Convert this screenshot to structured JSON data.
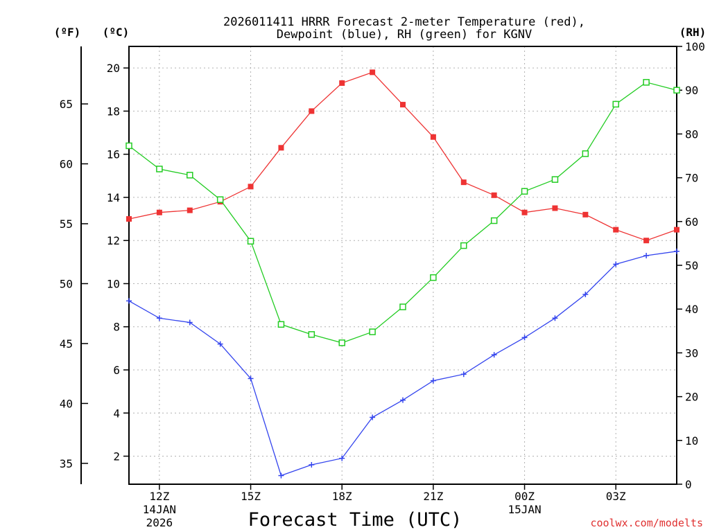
{
  "chart_data": {
    "type": "line",
    "title_line1": "2026011411 HRRR Forecast 2-meter Temperature (red),",
    "title_line2": "Dewpoint (blue), RH (green) for KGNV",
    "unit_f": "(ºF)",
    "unit_c": "(ºC)",
    "unit_rh": "(RH)",
    "xlabel": "Forecast Time (UTC)",
    "watermark": "coolwx.com/modelts",
    "x_hours": [
      11,
      12,
      13,
      14,
      15,
      16,
      17,
      18,
      19,
      20,
      21,
      22,
      23,
      24,
      25,
      26,
      27,
      28,
      29
    ],
    "x_ticks": [
      {
        "hour": 12,
        "label": "12Z",
        "sub1": "14JAN",
        "sub2": "2026"
      },
      {
        "hour": 15,
        "label": "15Z",
        "sub1": "",
        "sub2": ""
      },
      {
        "hour": 18,
        "label": "18Z",
        "sub1": "",
        "sub2": ""
      },
      {
        "hour": 21,
        "label": "21Z",
        "sub1": "",
        "sub2": ""
      },
      {
        "hour": 24,
        "label": "00Z",
        "sub1": "15JAN",
        "sub2": ""
      },
      {
        "hour": 27,
        "label": "03Z",
        "sub1": "",
        "sub2": ""
      }
    ],
    "xlim": [
      11,
      29
    ],
    "c_lim": [
      0.7,
      21.0
    ],
    "c_ticks": [
      "2",
      "4",
      "6",
      "8",
      "10",
      "12",
      "14",
      "16",
      "18",
      "20"
    ],
    "f_ticks": [
      "35",
      "40",
      "45",
      "50",
      "55",
      "60",
      "65"
    ],
    "rh_lim": [
      0,
      100
    ],
    "rh_ticks": [
      "0",
      "10",
      "20",
      "30",
      "40",
      "50",
      "60",
      "70",
      "80",
      "90",
      "100"
    ],
    "series": [
      {
        "name": "Temperature",
        "color": "#ee3333",
        "axis": "c",
        "marker": "filled-square",
        "values": [
          13.0,
          13.3,
          13.4,
          13.8,
          14.5,
          16.3,
          18.0,
          19.3,
          19.8,
          18.3,
          16.8,
          14.7,
          14.1,
          13.3,
          13.5,
          13.2,
          12.5,
          12.0,
          12.5
        ]
      },
      {
        "name": "Dewpoint",
        "color": "#3344ee",
        "axis": "c",
        "marker": "plus",
        "values": [
          9.2,
          8.4,
          8.2,
          7.2,
          5.6,
          1.1,
          1.6,
          1.9,
          3.8,
          4.6,
          5.5,
          5.8,
          6.7,
          7.5,
          8.4,
          9.5,
          10.9,
          11.3,
          11.5
        ]
      },
      {
        "name": "RH",
        "color": "#22cc22",
        "axis": "rh",
        "marker": "open-square",
        "values": [
          77.3,
          72.0,
          70.6,
          65.0,
          55.5,
          36.5,
          34.2,
          32.3,
          34.8,
          40.5,
          47.2,
          54.5,
          60.2,
          66.9,
          69.6,
          75.5,
          86.8,
          91.8,
          90.0
        ]
      }
    ],
    "grid": true
  }
}
